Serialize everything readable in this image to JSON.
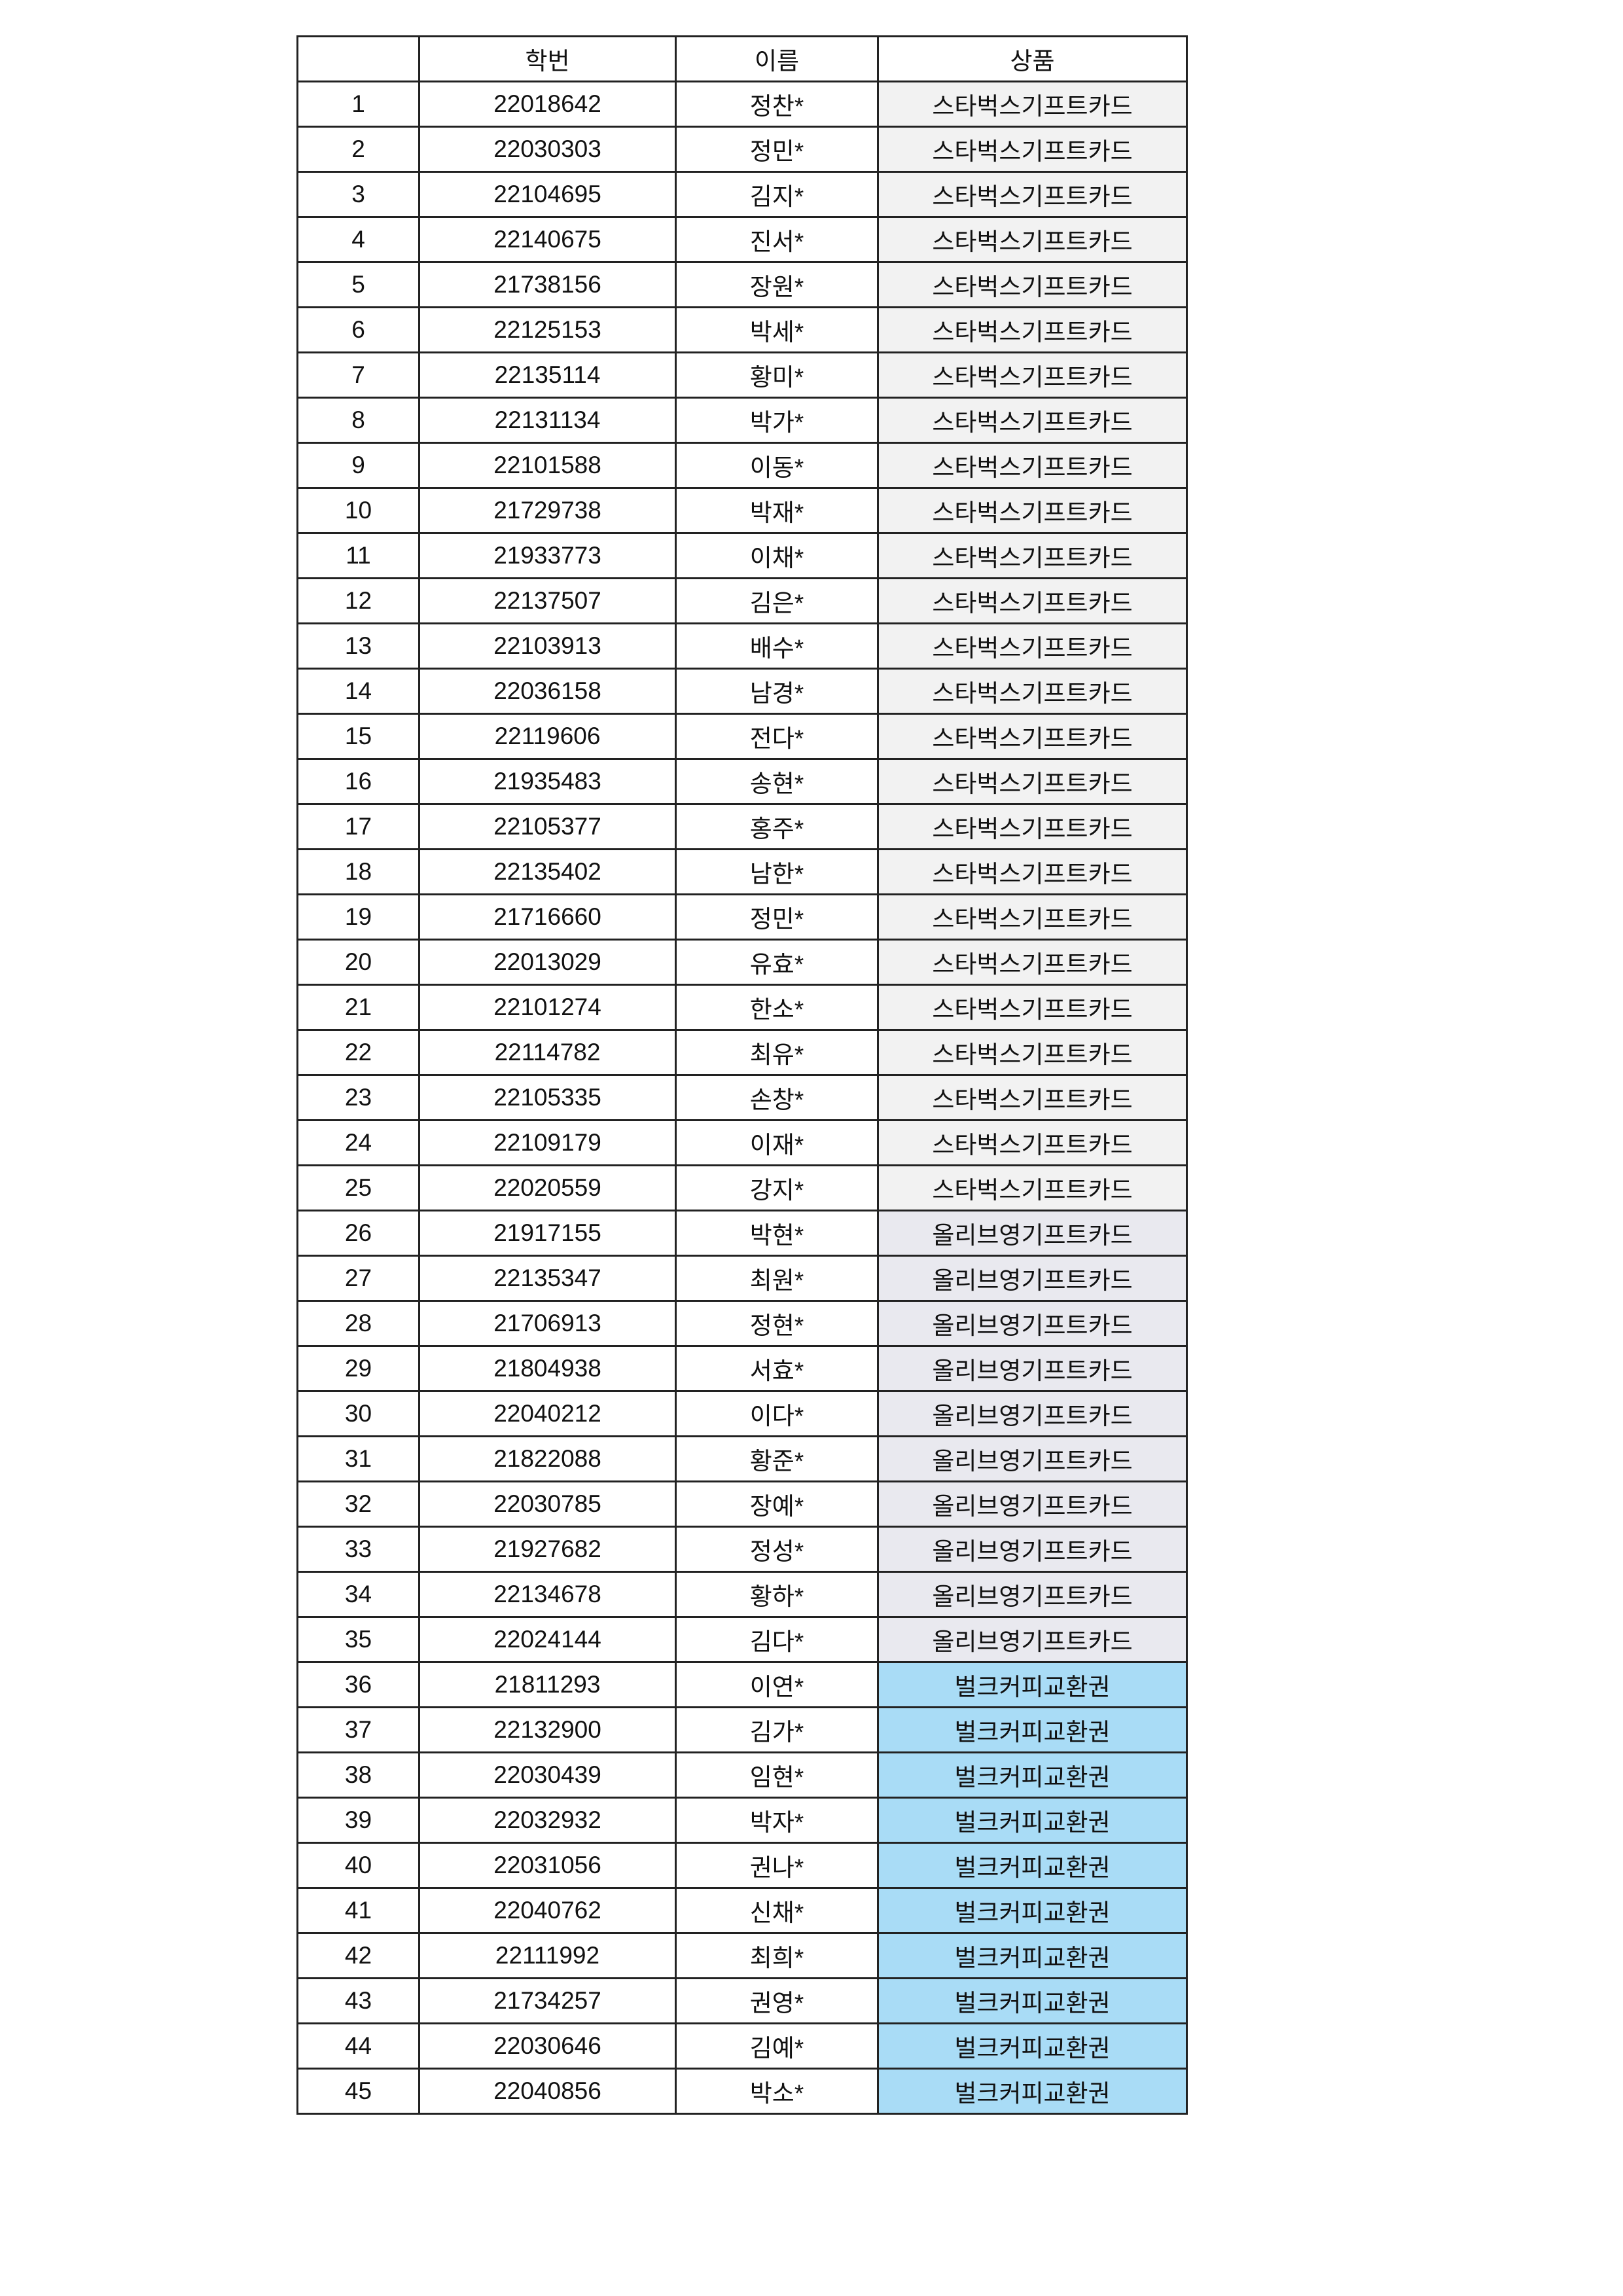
{
  "header": {
    "no": "",
    "student_id": "학번",
    "name": "이름",
    "prize": "상품"
  },
  "prize_colors": {
    "스타벅스기프트카드": "#f2f2f2",
    "올리브영기프트카드": "#e9e9ef",
    "벌크커피교환권": "#a9dcf6"
  },
  "rows": [
    {
      "no": "1",
      "id": "22018642",
      "name": "정찬*",
      "prize": "스타벅스기프트카드"
    },
    {
      "no": "2",
      "id": "22030303",
      "name": "정민*",
      "prize": "스타벅스기프트카드"
    },
    {
      "no": "3",
      "id": "22104695",
      "name": "김지*",
      "prize": "스타벅스기프트카드"
    },
    {
      "no": "4",
      "id": "22140675",
      "name": "진서*",
      "prize": "스타벅스기프트카드"
    },
    {
      "no": "5",
      "id": "21738156",
      "name": "장원*",
      "prize": "스타벅스기프트카드"
    },
    {
      "no": "6",
      "id": "22125153",
      "name": "박세*",
      "prize": "스타벅스기프트카드"
    },
    {
      "no": "7",
      "id": "22135114",
      "name": "황미*",
      "prize": "스타벅스기프트카드"
    },
    {
      "no": "8",
      "id": "22131134",
      "name": "박가*",
      "prize": "스타벅스기프트카드"
    },
    {
      "no": "9",
      "id": "22101588",
      "name": "이동*",
      "prize": "스타벅스기프트카드"
    },
    {
      "no": "10",
      "id": "21729738",
      "name": "박재*",
      "prize": "스타벅스기프트카드"
    },
    {
      "no": "11",
      "id": "21933773",
      "name": "이채*",
      "prize": "스타벅스기프트카드"
    },
    {
      "no": "12",
      "id": "22137507",
      "name": "김은*",
      "prize": "스타벅스기프트카드"
    },
    {
      "no": "13",
      "id": "22103913",
      "name": "배수*",
      "prize": "스타벅스기프트카드"
    },
    {
      "no": "14",
      "id": "22036158",
      "name": "남경*",
      "prize": "스타벅스기프트카드"
    },
    {
      "no": "15",
      "id": "22119606",
      "name": "전다*",
      "prize": "스타벅스기프트카드"
    },
    {
      "no": "16",
      "id": "21935483",
      "name": "송현*",
      "prize": "스타벅스기프트카드"
    },
    {
      "no": "17",
      "id": "22105377",
      "name": "홍주*",
      "prize": "스타벅스기프트카드"
    },
    {
      "no": "18",
      "id": "22135402",
      "name": "남한*",
      "prize": "스타벅스기프트카드"
    },
    {
      "no": "19",
      "id": "21716660",
      "name": "정민*",
      "prize": "스타벅스기프트카드"
    },
    {
      "no": "20",
      "id": "22013029",
      "name": "유효*",
      "prize": "스타벅스기프트카드"
    },
    {
      "no": "21",
      "id": "22101274",
      "name": "한소*",
      "prize": "스타벅스기프트카드"
    },
    {
      "no": "22",
      "id": "22114782",
      "name": "최유*",
      "prize": "스타벅스기프트카드"
    },
    {
      "no": "23",
      "id": "22105335",
      "name": "손창*",
      "prize": "스타벅스기프트카드"
    },
    {
      "no": "24",
      "id": "22109179",
      "name": "이재*",
      "prize": "스타벅스기프트카드"
    },
    {
      "no": "25",
      "id": "22020559",
      "name": "강지*",
      "prize": "스타벅스기프트카드"
    },
    {
      "no": "26",
      "id": "21917155",
      "name": "박현*",
      "prize": "올리브영기프트카드"
    },
    {
      "no": "27",
      "id": "22135347",
      "name": "최원*",
      "prize": "올리브영기프트카드"
    },
    {
      "no": "28",
      "id": "21706913",
      "name": "정현*",
      "prize": "올리브영기프트카드"
    },
    {
      "no": "29",
      "id": "21804938",
      "name": "서효*",
      "prize": "올리브영기프트카드"
    },
    {
      "no": "30",
      "id": "22040212",
      "name": "이다*",
      "prize": "올리브영기프트카드"
    },
    {
      "no": "31",
      "id": "21822088",
      "name": "황준*",
      "prize": "올리브영기프트카드"
    },
    {
      "no": "32",
      "id": "22030785",
      "name": "장예*",
      "prize": "올리브영기프트카드"
    },
    {
      "no": "33",
      "id": "21927682",
      "name": "정성*",
      "prize": "올리브영기프트카드"
    },
    {
      "no": "34",
      "id": "22134678",
      "name": "황하*",
      "prize": "올리브영기프트카드"
    },
    {
      "no": "35",
      "id": "22024144",
      "name": "김다*",
      "prize": "올리브영기프트카드"
    },
    {
      "no": "36",
      "id": "21811293",
      "name": "이연*",
      "prize": "벌크커피교환권"
    },
    {
      "no": "37",
      "id": "22132900",
      "name": "김가*",
      "prize": "벌크커피교환권"
    },
    {
      "no": "38",
      "id": "22030439",
      "name": "임현*",
      "prize": "벌크커피교환권"
    },
    {
      "no": "39",
      "id": "22032932",
      "name": "박자*",
      "prize": "벌크커피교환권"
    },
    {
      "no": "40",
      "id": "22031056",
      "name": "권나*",
      "prize": "벌크커피교환권"
    },
    {
      "no": "41",
      "id": "22040762",
      "name": "신채*",
      "prize": "벌크커피교환권"
    },
    {
      "no": "42",
      "id": "22111992",
      "name": "최희*",
      "prize": "벌크커피교환권"
    },
    {
      "no": "43",
      "id": "21734257",
      "name": "권영*",
      "prize": "벌크커피교환권"
    },
    {
      "no": "44",
      "id": "22030646",
      "name": "김예*",
      "prize": "벌크커피교환권"
    },
    {
      "no": "45",
      "id": "22040856",
      "name": "박소*",
      "prize": "벌크커피교환권"
    }
  ]
}
